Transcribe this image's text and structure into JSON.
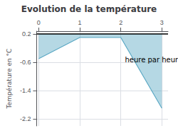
{
  "chart_data": {
    "type": "line",
    "title": "Evolution de la température",
    "ylabel": "Température en °C",
    "x": [
      0,
      1,
      2,
      3
    ],
    "values": [
      -0.5,
      0.1,
      0.1,
      -1.9
    ],
    "color": "#5ba8c4",
    "fill_top": 0.2,
    "xlim": [
      -0.05,
      3.15
    ],
    "ylim": [
      -2.4,
      0.28
    ],
    "xticks": [
      0,
      1,
      2,
      3
    ],
    "yticks": [
      0.2,
      -0.6,
      -1.4,
      -2.2
    ],
    "grid": true,
    "annotations": [
      {
        "text": "heure par heure",
        "x": 2.1,
        "y": -0.52
      }
    ]
  }
}
